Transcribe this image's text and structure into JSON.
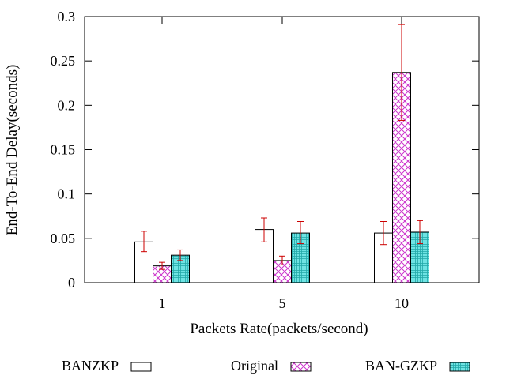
{
  "chart_data": {
    "type": "bar",
    "title": "",
    "xlabel": "Packets Rate(packets/second)",
    "ylabel": "End-To-End Delay(seconds)",
    "ylim": [
      0,
      0.3
    ],
    "yticks": [
      0,
      0.05,
      0.1,
      0.15,
      0.2,
      0.25,
      0.3
    ],
    "ytick_labels": [
      "0",
      "0.05",
      "0.1",
      "0.15",
      "0.2",
      "0.25",
      "0.3"
    ],
    "categories": [
      "1",
      "5",
      "10"
    ],
    "legend_position": "bottom",
    "error_bar_color": "#cc0000",
    "series": [
      {
        "name": "BANZKP",
        "pattern": "solid-white",
        "color": "#ffffff",
        "values": [
          0.046,
          0.06,
          0.056
        ],
        "err_low": [
          0.035,
          0.046,
          0.043
        ],
        "err_high": [
          0.058,
          0.073,
          0.069
        ]
      },
      {
        "name": "Original",
        "pattern": "crosshatch",
        "color": "#cc33cc",
        "values": [
          0.019,
          0.025,
          0.237
        ],
        "err_low": [
          0.015,
          0.02,
          0.183
        ],
        "err_high": [
          0.023,
          0.03,
          0.291
        ]
      },
      {
        "name": "BAN-GZKP",
        "pattern": "dense-grid",
        "color": "#33cccc",
        "values": [
          0.031,
          0.056,
          0.057
        ],
        "err_low": [
          0.025,
          0.044,
          0.044
        ],
        "err_high": [
          0.037,
          0.069,
          0.07
        ]
      }
    ]
  }
}
